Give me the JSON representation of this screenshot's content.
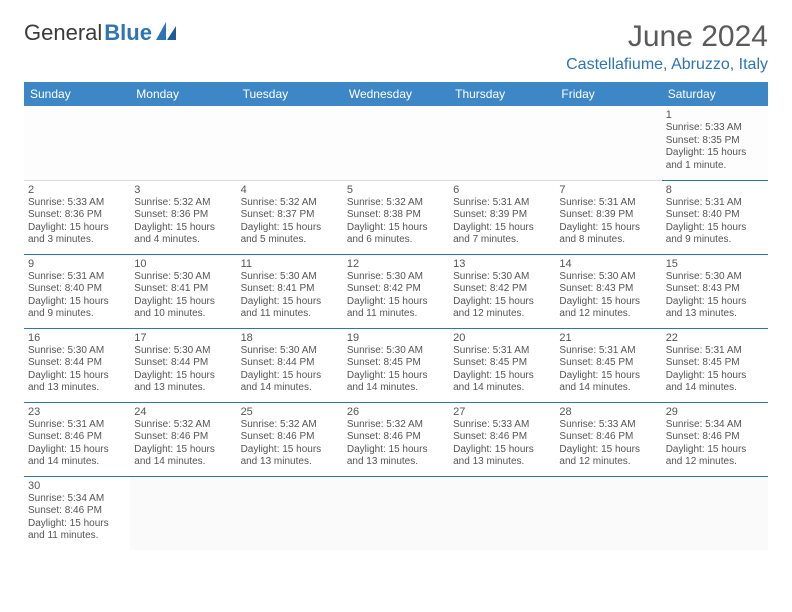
{
  "header": {
    "logo": {
      "part1": "General",
      "part2": "Blue"
    },
    "month_title": "June 2024",
    "location": "Castellafiume, Abruzzo, Italy"
  },
  "weekdays": [
    "Sunday",
    "Monday",
    "Tuesday",
    "Wednesday",
    "Thursday",
    "Friday",
    "Saturday"
  ],
  "colors": {
    "header_bg": "#3d87c7",
    "header_text": "#ffffff",
    "accent": "#2e74b5",
    "text": "#555555",
    "title_text": "#5a5a5a"
  },
  "layout": {
    "columns": 7,
    "rows": 6,
    "first_day_column_index": 6
  },
  "days": [
    {
      "n": 1,
      "sunrise": "5:33 AM",
      "sunset": "8:35 PM",
      "daylight": "15 hours and 1 minute."
    },
    {
      "n": 2,
      "sunrise": "5:33 AM",
      "sunset": "8:36 PM",
      "daylight": "15 hours and 3 minutes."
    },
    {
      "n": 3,
      "sunrise": "5:32 AM",
      "sunset": "8:36 PM",
      "daylight": "15 hours and 4 minutes."
    },
    {
      "n": 4,
      "sunrise": "5:32 AM",
      "sunset": "8:37 PM",
      "daylight": "15 hours and 5 minutes."
    },
    {
      "n": 5,
      "sunrise": "5:32 AM",
      "sunset": "8:38 PM",
      "daylight": "15 hours and 6 minutes."
    },
    {
      "n": 6,
      "sunrise": "5:31 AM",
      "sunset": "8:39 PM",
      "daylight": "15 hours and 7 minutes."
    },
    {
      "n": 7,
      "sunrise": "5:31 AM",
      "sunset": "8:39 PM",
      "daylight": "15 hours and 8 minutes."
    },
    {
      "n": 8,
      "sunrise": "5:31 AM",
      "sunset": "8:40 PM",
      "daylight": "15 hours and 9 minutes."
    },
    {
      "n": 9,
      "sunrise": "5:31 AM",
      "sunset": "8:40 PM",
      "daylight": "15 hours and 9 minutes."
    },
    {
      "n": 10,
      "sunrise": "5:30 AM",
      "sunset": "8:41 PM",
      "daylight": "15 hours and 10 minutes."
    },
    {
      "n": 11,
      "sunrise": "5:30 AM",
      "sunset": "8:41 PM",
      "daylight": "15 hours and 11 minutes."
    },
    {
      "n": 12,
      "sunrise": "5:30 AM",
      "sunset": "8:42 PM",
      "daylight": "15 hours and 11 minutes."
    },
    {
      "n": 13,
      "sunrise": "5:30 AM",
      "sunset": "8:42 PM",
      "daylight": "15 hours and 12 minutes."
    },
    {
      "n": 14,
      "sunrise": "5:30 AM",
      "sunset": "8:43 PM",
      "daylight": "15 hours and 12 minutes."
    },
    {
      "n": 15,
      "sunrise": "5:30 AM",
      "sunset": "8:43 PM",
      "daylight": "15 hours and 13 minutes."
    },
    {
      "n": 16,
      "sunrise": "5:30 AM",
      "sunset": "8:44 PM",
      "daylight": "15 hours and 13 minutes."
    },
    {
      "n": 17,
      "sunrise": "5:30 AM",
      "sunset": "8:44 PM",
      "daylight": "15 hours and 13 minutes."
    },
    {
      "n": 18,
      "sunrise": "5:30 AM",
      "sunset": "8:44 PM",
      "daylight": "15 hours and 14 minutes."
    },
    {
      "n": 19,
      "sunrise": "5:30 AM",
      "sunset": "8:45 PM",
      "daylight": "15 hours and 14 minutes."
    },
    {
      "n": 20,
      "sunrise": "5:31 AM",
      "sunset": "8:45 PM",
      "daylight": "15 hours and 14 minutes."
    },
    {
      "n": 21,
      "sunrise": "5:31 AM",
      "sunset": "8:45 PM",
      "daylight": "15 hours and 14 minutes."
    },
    {
      "n": 22,
      "sunrise": "5:31 AM",
      "sunset": "8:45 PM",
      "daylight": "15 hours and 14 minutes."
    },
    {
      "n": 23,
      "sunrise": "5:31 AM",
      "sunset": "8:46 PM",
      "daylight": "15 hours and 14 minutes."
    },
    {
      "n": 24,
      "sunrise": "5:32 AM",
      "sunset": "8:46 PM",
      "daylight": "15 hours and 14 minutes."
    },
    {
      "n": 25,
      "sunrise": "5:32 AM",
      "sunset": "8:46 PM",
      "daylight": "15 hours and 13 minutes."
    },
    {
      "n": 26,
      "sunrise": "5:32 AM",
      "sunset": "8:46 PM",
      "daylight": "15 hours and 13 minutes."
    },
    {
      "n": 27,
      "sunrise": "5:33 AM",
      "sunset": "8:46 PM",
      "daylight": "15 hours and 13 minutes."
    },
    {
      "n": 28,
      "sunrise": "5:33 AM",
      "sunset": "8:46 PM",
      "daylight": "15 hours and 12 minutes."
    },
    {
      "n": 29,
      "sunrise": "5:34 AM",
      "sunset": "8:46 PM",
      "daylight": "15 hours and 12 minutes."
    },
    {
      "n": 30,
      "sunrise": "5:34 AM",
      "sunset": "8:46 PM",
      "daylight": "15 hours and 11 minutes."
    }
  ],
  "labels": {
    "sunrise_prefix": "Sunrise: ",
    "sunset_prefix": "Sunset: ",
    "daylight_prefix": "Daylight: "
  }
}
